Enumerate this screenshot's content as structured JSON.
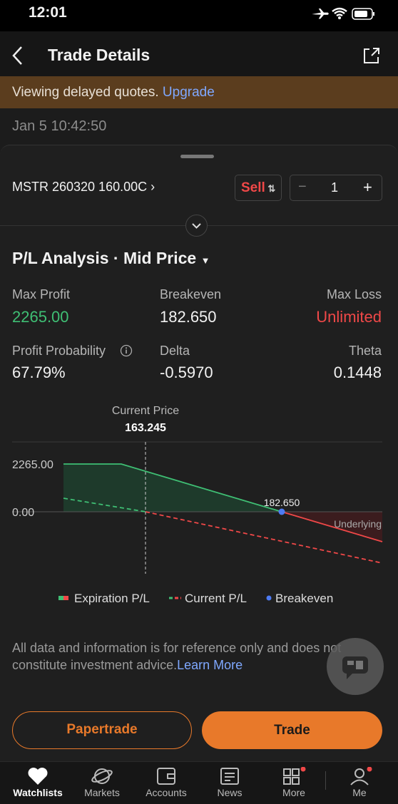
{
  "status_bar": {
    "time": "12:01"
  },
  "header": {
    "title": "Trade Details"
  },
  "banner": {
    "text": "Viewing delayed quotes.",
    "link": "Upgrade"
  },
  "timestamp": "Jan 5 10:42:50",
  "contract": {
    "symbol": "MSTR 260320 160.00C",
    "side": "Sell",
    "quantity": "1"
  },
  "analysis": {
    "title": "P/L Analysis · Mid Price",
    "stats": [
      {
        "label": "Max Profit",
        "value": "2265.00"
      },
      {
        "label": "Breakeven",
        "value": "182.650"
      },
      {
        "label": "Max Loss",
        "value": "Unlimited"
      },
      {
        "label": "Profit Probability",
        "value": "67.79%"
      },
      {
        "label": "Delta",
        "value": "-0.5970"
      },
      {
        "label": "Theta",
        "value": "0.1448"
      }
    ]
  },
  "chart": {
    "current_price_label": "Current Price",
    "current_price": "163.245",
    "y_labels": [
      "2265.00",
      "0.00"
    ],
    "breakeven": "182.650",
    "underlying_label": "Underlying",
    "legend": [
      "Expiration P/L",
      "Current P/L",
      "Breakeven"
    ]
  },
  "disclaimer": {
    "text": "All data and information is for reference only and does not constitute investment advice.",
    "link": "Learn More"
  },
  "buttons": [
    "Papertrade",
    "Trade"
  ],
  "tabs": [
    "Watchlists",
    "Markets",
    "Accounts",
    "News",
    "More",
    "Me"
  ]
}
